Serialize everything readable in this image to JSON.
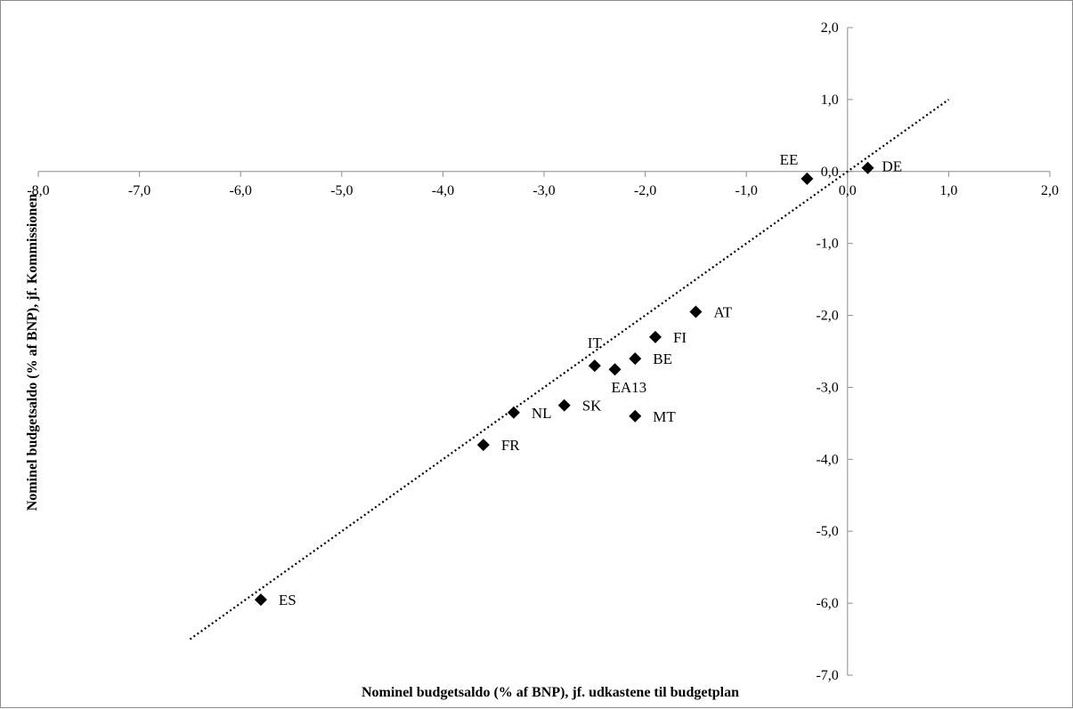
{
  "chart_data": {
    "type": "scatter",
    "xlabel": "Nominel budgetsaldo (% af BNP), jf. udkastene til budgetplan",
    "ylabel": "Nominel budgetsaldo (% af BNP), jf. Kommissionen",
    "xlim": [
      -8.0,
      2.0
    ],
    "ylim": [
      -7.0,
      2.0
    ],
    "x_ticks": [
      "-8,0",
      "-7,0",
      "-6,0",
      "-5,0",
      "-4,0",
      "-3,0",
      "-2,0",
      "-1,0",
      "0,0",
      "1,0",
      "2,0"
    ],
    "y_ticks": [
      "2,0",
      "1,0",
      "0,0",
      "-1,0",
      "-2,0",
      "-3,0",
      "-4,0",
      "-5,0",
      "-6,0",
      "-7,0"
    ],
    "grid": false,
    "legend": "none",
    "marker": "diamond",
    "marker_color": "#000000",
    "points": [
      {
        "label": "DE",
        "x": 0.2,
        "y": 0.05
      },
      {
        "label": "EE",
        "x": -0.4,
        "y": -0.1
      },
      {
        "label": "AT",
        "x": -1.5,
        "y": -1.95
      },
      {
        "label": "FI",
        "x": -1.9,
        "y": -2.3
      },
      {
        "label": "BE",
        "x": -2.1,
        "y": -2.6
      },
      {
        "label": "IT",
        "x": -2.5,
        "y": -2.7
      },
      {
        "label": "EA13",
        "x": -2.3,
        "y": -2.75
      },
      {
        "label": "SK",
        "x": -2.8,
        "y": -3.25
      },
      {
        "label": "MT",
        "x": -2.1,
        "y": -3.4
      },
      {
        "label": "NL",
        "x": -3.3,
        "y": -3.35
      },
      {
        "label": "FR",
        "x": -3.6,
        "y": -3.8
      },
      {
        "label": "ES",
        "x": -5.8,
        "y": -5.95
      }
    ],
    "reference_line": {
      "style": "dotted",
      "x": [
        -6.5,
        1.0
      ],
      "y": [
        -6.5,
        1.0
      ]
    }
  }
}
